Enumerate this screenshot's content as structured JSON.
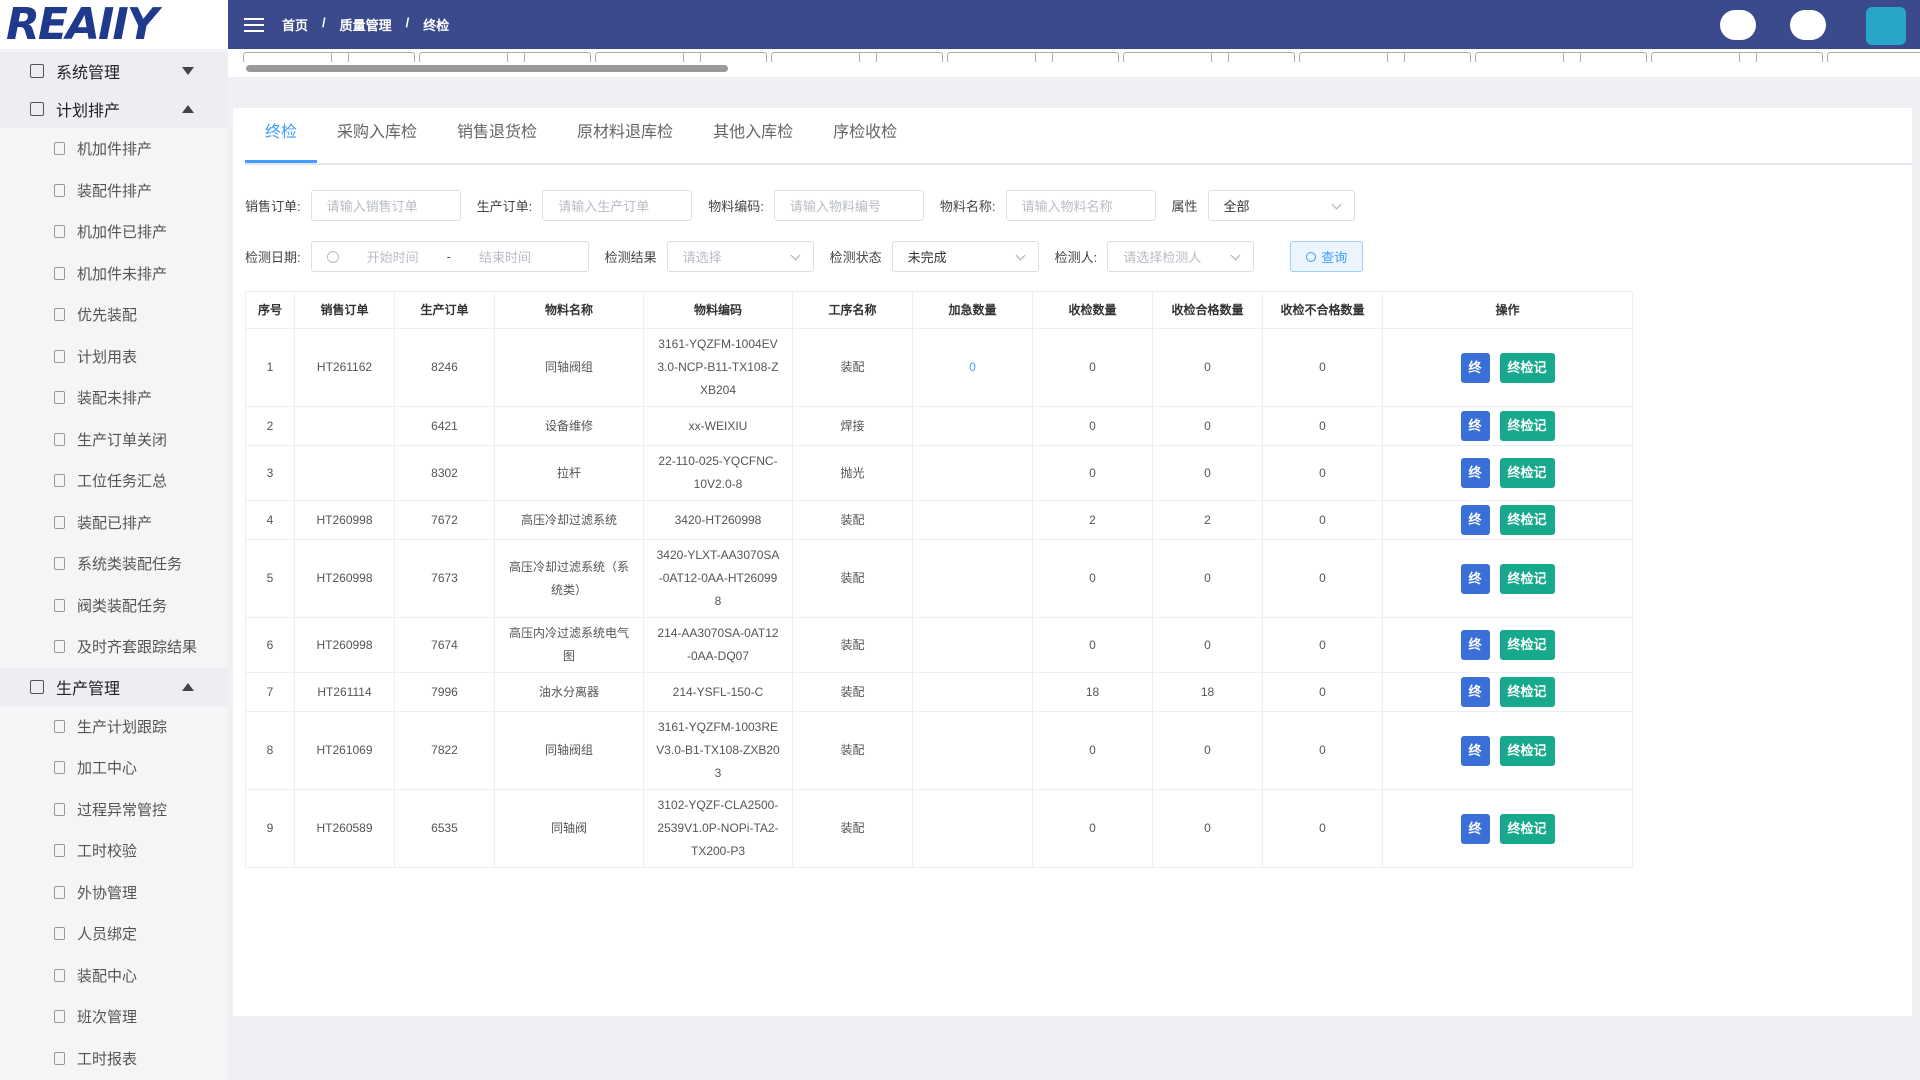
{
  "logo": "REAIIY",
  "breadcrumb": [
    "首页",
    "质量管理",
    "终检"
  ],
  "breadcrumb_separator": "/",
  "sidebar": [
    {
      "label": "系统管理",
      "expanded": false,
      "children": []
    },
    {
      "label": "计划排产",
      "expanded": true,
      "children": [
        "机加件排产",
        "装配件排产",
        "机加件已排产",
        "机加件未排产",
        "优先装配",
        "计划用表",
        "装配未排产",
        "生产订单关闭",
        "工位任务汇总",
        "装配已排产",
        "系统类装配任务",
        "阀类装配任务",
        "及时齐套跟踪结果"
      ]
    },
    {
      "label": "生产管理",
      "expanded": true,
      "children": [
        "生产计划跟踪",
        "加工中心",
        "过程异常管控",
        "工时校验",
        "外协管理",
        "人员绑定",
        "装配中心",
        "班次管理",
        "工时报表"
      ]
    }
  ],
  "tabs": [
    "终检",
    "采购入库检",
    "销售退货检",
    "原材料退库检",
    "其他入库检",
    "序检收检"
  ],
  "filters": [
    [
      {
        "kind": "input",
        "label": "销售订单:",
        "placeholder": "请输入销售订单"
      },
      {
        "kind": "input",
        "label": "生产订单:",
        "placeholder": "请输入生产订单"
      },
      {
        "kind": "input",
        "label": "物料编码:",
        "placeholder": "请输入物料编号"
      },
      {
        "kind": "input",
        "label": "物料名称:",
        "placeholder": "请输入物料名称"
      },
      {
        "kind": "select",
        "label": "属性",
        "value": "全部"
      }
    ],
    [
      {
        "kind": "date",
        "label": "检测日期:",
        "start": "开始时间",
        "separator": "-",
        "end": "结束时间"
      },
      {
        "kind": "select",
        "label": "检测结果",
        "placeholder": "请选择"
      },
      {
        "kind": "select",
        "label": "检测状态",
        "value": "未完成"
      },
      {
        "kind": "select",
        "label": "检测人:",
        "placeholder": "请选择检测人"
      },
      {
        "kind": "button",
        "label": "查询"
      }
    ]
  ],
  "table": {
    "headers": [
      "序号",
      "销售订单",
      "生产订单",
      "物料名称",
      "物料编码",
      "工序名称",
      "加急数量",
      "收检数量",
      "收检合格数量",
      "收检不合格数量",
      "操作"
    ],
    "rows": [
      [
        1,
        "HT261162",
        8246,
        "同轴阀组",
        "3161-YQZFM-1004EV3.0-NCP-B11-TX108-ZXB204",
        "装配",
        0,
        0,
        0,
        0
      ],
      [
        2,
        null,
        6421,
        "设备维修",
        "xx-WEIXIU",
        "焊接",
        null,
        0,
        0,
        0
      ],
      [
        3,
        null,
        8302,
        "拉杆",
        "22-110-025-YQCFNC-10V2.0-8",
        "抛光",
        null,
        0,
        0,
        0
      ],
      [
        4,
        "HT260998",
        7672,
        "高压冷却过滤系统",
        "3420-HT260998",
        "装配",
        null,
        2,
        2,
        0
      ],
      [
        5,
        "HT260998",
        7673,
        "高压冷却过滤系统（系统类）",
        "3420-YLXT-AA3070SA-0AT12-0AA-HT260998",
        "装配",
        null,
        0,
        0,
        0
      ],
      [
        6,
        "HT260998",
        7674,
        "高压内冷过滤系统电气图",
        "214-AA3070SA-0AT12-0AA-DQ07",
        "装配",
        null,
        0,
        0,
        0
      ],
      [
        7,
        "HT261114",
        7996,
        "油水分离器",
        "214-YSFL-150-C",
        "装配",
        null,
        18,
        18,
        0
      ],
      [
        8,
        "HT261069",
        7822,
        "同轴阀组",
        "3161-YQZFM-1003REV3.0-B1-TX108-ZXB203",
        "装配",
        null,
        0,
        0,
        0
      ],
      [
        9,
        "HT260589",
        6535,
        "同轴阀",
        "3102-YQZF-CLA2500-2539V1.0P-NOPi-TA2-TX200-P3",
        "装配",
        null,
        0,
        0,
        0
      ]
    ],
    "actions": [
      "终检",
      "终检记录"
    ]
  }
}
